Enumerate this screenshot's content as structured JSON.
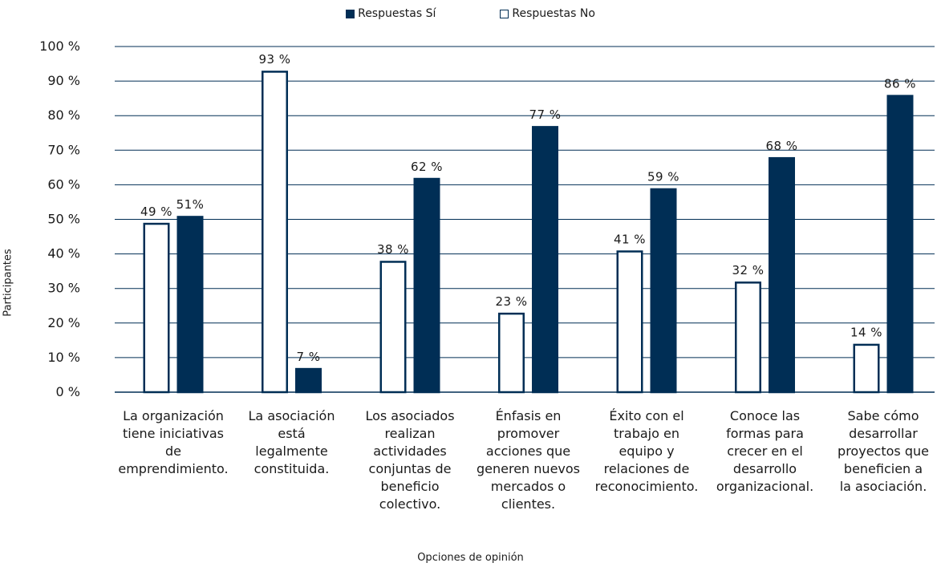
{
  "chart_data": {
    "type": "bar",
    "title": "",
    "xlabel": "Opciones de opinión",
    "ylabel": "Participantes",
    "ylim": [
      0,
      100
    ],
    "yticks": [
      "0 %",
      "10 %",
      "20 %",
      "30 %",
      "40 %",
      "50 %",
      "60 %",
      "70 %",
      "80 %",
      "90 %",
      "100 %"
    ],
    "grid": true,
    "legend_position": "top",
    "categories": [
      "La organización tiene iniciativas de emprendimiento.",
      "La asociación está legalmente constituida.",
      "Los asociados realizan actividades conjuntas de beneficio colectivo.",
      "Énfasis en promover acciones que generen nuevos mercados o clientes.",
      "Éxito con el trabajo en equipo y relaciones de reconocimiento.",
      "Conoce las formas para crecer en el desarrollo organizacional.",
      "Sabe cómo desarrollar proyectos que beneficien a la asociación."
    ],
    "category_lines": [
      [
        "La organización",
        "tiene iniciativas de",
        "emprendimiento."
      ],
      [
        "La asociación",
        "está",
        "legalmente",
        "constituida."
      ],
      [
        "Los asociados",
        "realizan",
        "actividades",
        "conjuntas de",
        "beneficio",
        "colectivo."
      ],
      [
        "Énfasis en",
        "promover",
        "acciones que",
        "generen nuevos",
        "mercados o",
        "clientes."
      ],
      [
        "Éxito con el",
        "trabajo en",
        "equipo y",
        "relaciones de",
        "reconocimiento."
      ],
      [
        "Conoce las",
        "formas para",
        "crecer en el",
        "desarrollo",
        "organizacional."
      ],
      [
        "Sabe cómo",
        "desarrollar",
        "proyectos que",
        "beneficien a",
        "la asociación."
      ]
    ],
    "series": [
      {
        "name": "Respuestas No",
        "values": [
          49,
          93,
          38,
          23,
          41,
          32,
          14
        ],
        "labels": [
          "49 %",
          "93 %",
          "38 %",
          "23 %",
          "41 %",
          "32 %",
          "14 %"
        ],
        "fill": "#ffffff",
        "stroke": "#002e55"
      },
      {
        "name": "Respuestas Sí",
        "values": [
          51,
          7,
          62,
          77,
          59,
          68,
          86
        ],
        "labels": [
          "51%",
          "7 %",
          "62 %",
          "77 %",
          "59 %",
          "68 %",
          "86 %"
        ],
        "fill": "#002e55",
        "stroke": "#002e55"
      }
    ],
    "legend": [
      "Respuestas Sí",
      "Respuestas No"
    ],
    "colors": {
      "dark": "#002e55",
      "grid": "#002e55",
      "text": "#1a1a1a"
    }
  }
}
